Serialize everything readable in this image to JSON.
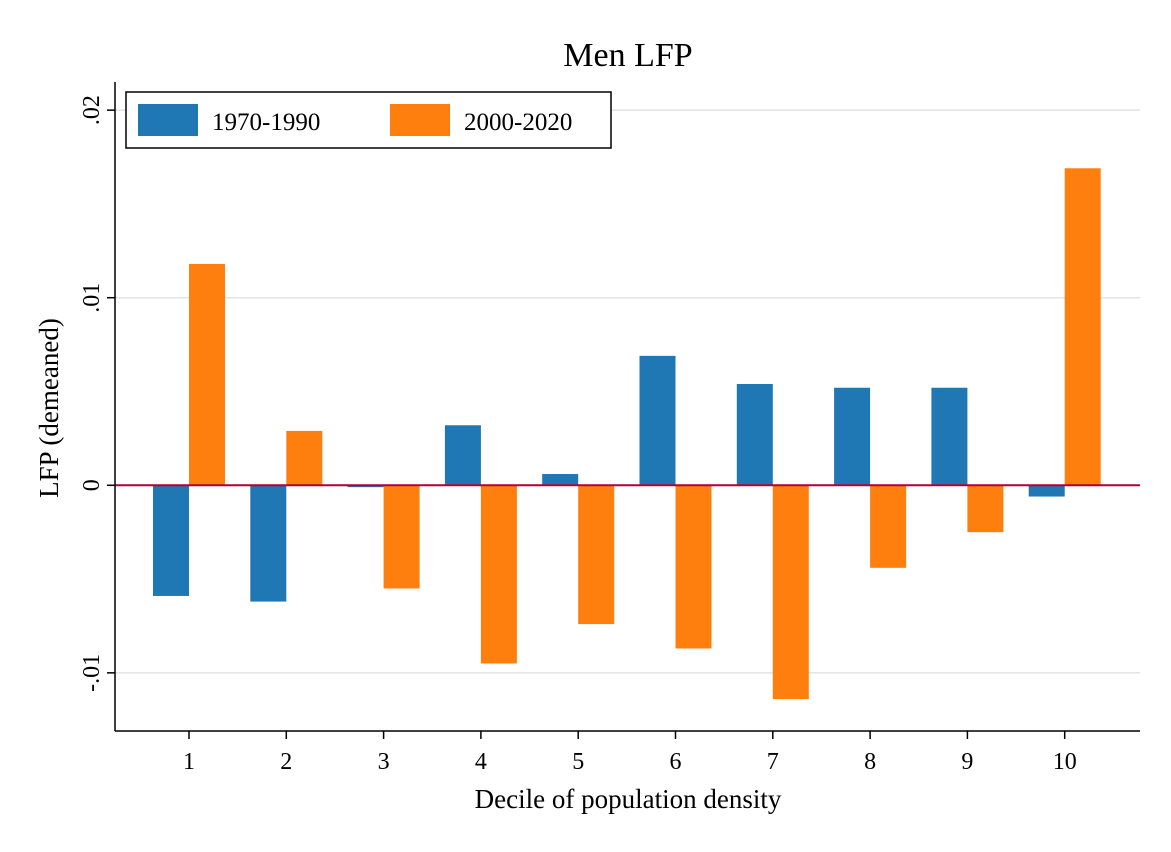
{
  "chart_data": {
    "type": "bar",
    "title": "Men LFP",
    "xlabel": "Decile of population density",
    "ylabel": "LFP (demeaned)",
    "categories": [
      "1",
      "2",
      "3",
      "4",
      "5",
      "6",
      "7",
      "8",
      "9",
      "10"
    ],
    "series": [
      {
        "name": "1970-1990",
        "color": "#1f77b4",
        "values": [
          -0.0059,
          -0.0062,
          -0.0001,
          0.0032,
          0.0006,
          0.0069,
          0.0054,
          0.0052,
          0.0052,
          -0.0006
        ]
      },
      {
        "name": "2000-2020",
        "color": "#ff7f0e",
        "values": [
          0.0118,
          0.0029,
          -0.0055,
          -0.0095,
          -0.0074,
          -0.0087,
          -0.0114,
          -0.0044,
          -0.0025,
          0.0169
        ]
      }
    ],
    "yticks": [
      -0.01,
      0,
      0.01,
      0.02
    ],
    "ytick_labels": [
      "-.01",
      "0",
      ".01",
      ".02"
    ],
    "ylim": [
      -0.0131,
      0.0215
    ],
    "zero_line_color": "#b0003a",
    "grid": true,
    "legend_position": "top-left"
  }
}
